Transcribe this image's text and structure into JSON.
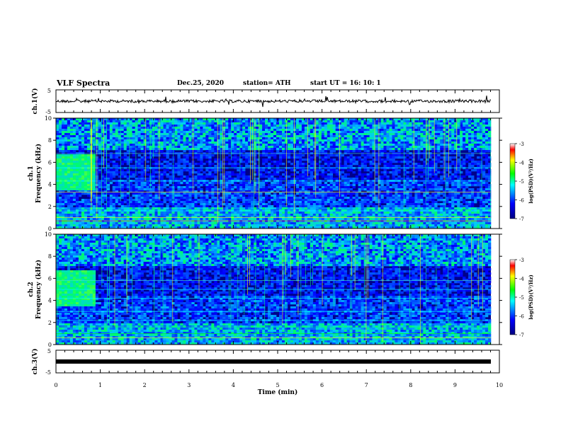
{
  "header": {
    "title": "VLF Spectra",
    "date": "Dec.25, 2020",
    "station": "station= ATH",
    "start": "start  UT =   16: 10: 1"
  },
  "chart_data": [
    {
      "type": "line",
      "name": "ch1-waveform",
      "ylabel": "ch.1(V)",
      "ylim": [
        -5,
        5
      ],
      "yticks": [
        "5",
        "-5"
      ],
      "xlim": [
        0,
        10
      ]
    },
    {
      "type": "heatmap",
      "name": "ch1-spectrogram",
      "ylabel": "ch.1\nFrequency (kHz)",
      "ylabel_lines": [
        "ch.1",
        "Frequency (kHz)"
      ],
      "ylim": [
        0,
        10
      ],
      "yticks": [
        "0",
        "2",
        "4",
        "6",
        "8",
        "10"
      ],
      "xlim": [
        0,
        10
      ],
      "colorbar": {
        "label": "log(PSD)(V²/Hz)",
        "range": [
          -7,
          -3
        ],
        "ticks": [
          "-3",
          "-4",
          "-5",
          "-6",
          "-7"
        ]
      }
    },
    {
      "type": "heatmap",
      "name": "ch2-spectrogram",
      "ylabel": "ch.2\nFrequency (kHz)",
      "ylabel_lines": [
        "ch.2",
        "Frequency (kHz)"
      ],
      "ylim": [
        0,
        10
      ],
      "yticks": [
        "0",
        "2",
        "4",
        "6",
        "8",
        "10"
      ],
      "xlim": [
        0,
        10
      ],
      "colorbar": {
        "label": "log(PSD)(V²/Hz)",
        "range": [
          -7,
          -3
        ],
        "ticks": [
          "-3",
          "-4",
          "-5",
          "-6",
          "-7"
        ]
      }
    },
    {
      "type": "line",
      "name": "ch3-waveform",
      "ylabel": "ch.3(V)",
      "ylim": [
        -5,
        5
      ],
      "yticks": [
        "5",
        "-5"
      ],
      "xlim": [
        0,
        10
      ],
      "xlabel": "Time (min)",
      "xticks": [
        "0",
        "1",
        "2",
        "3",
        "4",
        "5",
        "6",
        "7",
        "8",
        "9",
        "10"
      ]
    }
  ],
  "colors": {
    "background": "#000080",
    "low": "#0000ff",
    "mid": "#00ffff",
    "high": "#00ff00",
    "peak": "#ff0000"
  }
}
